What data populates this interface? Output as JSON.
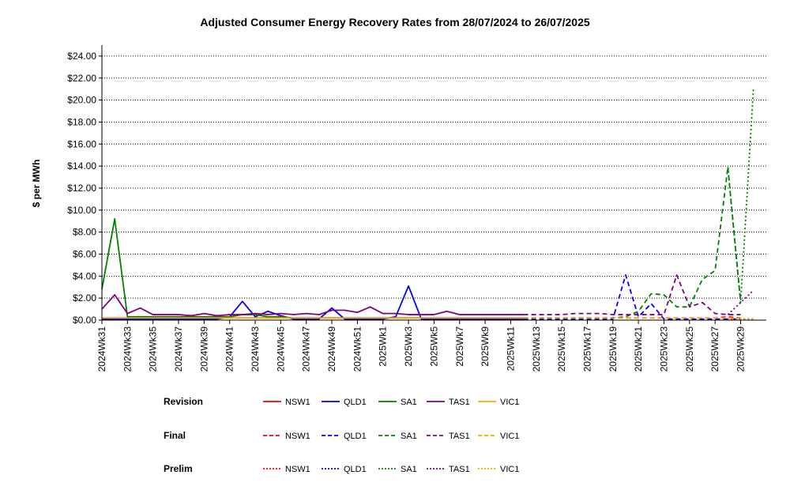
{
  "chart_data": {
    "type": "line",
    "title": "Adjusted Consumer Energy Recovery Rates from 28/07/2024 to 26/07/2025",
    "ylabel": "$ per MWh",
    "xlabel": "",
    "ylim": [
      0,
      25
    ],
    "y_ticks": [
      "$0.00",
      "$2.00",
      "$4.00",
      "$6.00",
      "$8.00",
      "$10.00",
      "$12.00",
      "$14.00",
      "$16.00",
      "$18.00",
      "$20.00",
      "$22.00",
      "$24.00"
    ],
    "y_tick_values": [
      0,
      2,
      4,
      6,
      8,
      10,
      12,
      14,
      16,
      18,
      20,
      22,
      24
    ],
    "grid": "horizontal dotted",
    "weeks": [
      "2024Wk31",
      "2024Wk32",
      "2024Wk33",
      "2024Wk34",
      "2024Wk35",
      "2024Wk36",
      "2024Wk37",
      "2024Wk38",
      "2024Wk39",
      "2024Wk40",
      "2024Wk41",
      "2024Wk42",
      "2024Wk43",
      "2024Wk44",
      "2024Wk45",
      "2024Wk46",
      "2024Wk47",
      "2024Wk48",
      "2024Wk49",
      "2024Wk50",
      "2024Wk51",
      "2024Wk52",
      "2025Wk1",
      "2025Wk2",
      "2025Wk3",
      "2025Wk4",
      "2025Wk5",
      "2025Wk6",
      "2025Wk7",
      "2025Wk8",
      "2025Wk9",
      "2025Wk10",
      "2025Wk11",
      "2025Wk12",
      "2025Wk13",
      "2025Wk14",
      "2025Wk15",
      "2025Wk16",
      "2025Wk17",
      "2025Wk18",
      "2025Wk19",
      "2025Wk20",
      "2025Wk21",
      "2025Wk22",
      "2025Wk23",
      "2025Wk24",
      "2025Wk25",
      "2025Wk26",
      "2025Wk27",
      "2025Wk28",
      "2025Wk29",
      "2025Wk30"
    ],
    "x_tick_labels": [
      "2024Wk31",
      "2024Wk33",
      "2024Wk35",
      "2024Wk37",
      "2024Wk39",
      "2024Wk41",
      "2024Wk43",
      "2024Wk45",
      "2024Wk47",
      "2024Wk49",
      "2024Wk51",
      "2025Wk1",
      "2025Wk3",
      "2025Wk5",
      "2025Wk7",
      "2025Wk9",
      "2025Wk11",
      "2025Wk13",
      "2025Wk15",
      "2025Wk17",
      "2025Wk19",
      "2025Wk21",
      "2025Wk23",
      "2025Wk25",
      "2025Wk27",
      "2025Wk29"
    ],
    "legend_groups": [
      {
        "label": "Revision",
        "style": "solid"
      },
      {
        "label": "Final",
        "style": "dashed"
      },
      {
        "label": "Prelim",
        "style": "dotted"
      }
    ],
    "regions": [
      {
        "name": "NSW1",
        "color": "#ff0000"
      },
      {
        "name": "QLD1",
        "color": "#0000ff"
      },
      {
        "name": "SA1",
        "color": "#008000"
      },
      {
        "name": "TAS1",
        "color": "#800080"
      },
      {
        "name": "VIC1",
        "color": "#ffa500"
      }
    ],
    "series": [
      {
        "name": "NSW1",
        "stage": "Revision",
        "start": 0,
        "values": [
          0.2,
          0.2,
          0.2,
          0.2,
          0.2,
          0.2,
          0.2,
          0.2,
          0.2,
          0.2,
          0.2,
          0.2,
          0.2,
          0.2,
          0.2,
          0.2,
          0.2,
          0.2,
          0.2,
          0.2,
          0.2,
          0.2,
          0.2,
          0.2,
          0.2,
          0.2,
          0.2,
          0.2,
          0.2,
          0.2,
          0.2,
          0.2,
          0.2,
          0.2
        ]
      },
      {
        "name": "QLD1",
        "stage": "Revision",
        "start": 0,
        "values": [
          0.1,
          0.1,
          0.1,
          0.1,
          0.1,
          0.1,
          0.1,
          0.1,
          0.1,
          0.1,
          0.3,
          1.7,
          0.3,
          0.8,
          0.4,
          0.1,
          0.1,
          0.1,
          1.1,
          0.1,
          0.1,
          0.1,
          0.1,
          0.3,
          3.1,
          0.1,
          0.1,
          0.1,
          0.1,
          0.1,
          0.1,
          0.1,
          0.1,
          0.1
        ]
      },
      {
        "name": "SA1",
        "stage": "Revision",
        "start": 0,
        "values": [
          2.8,
          9.2,
          0.3,
          0.3,
          0.3,
          0.3,
          0.3,
          0.3,
          0.3,
          0.3,
          0.3,
          0.5,
          0.5,
          0.3,
          0.3,
          0.2,
          0.2,
          0.2,
          0.2,
          0.2,
          0.2,
          0.2,
          0.2,
          0.2,
          0.2,
          0.2,
          0.2,
          0.2,
          0.2,
          0.2,
          0.2,
          0.2,
          0.2,
          0.2
        ]
      },
      {
        "name": "TAS1",
        "stage": "Revision",
        "start": 0,
        "values": [
          1.0,
          2.3,
          0.6,
          1.1,
          0.5,
          0.5,
          0.5,
          0.4,
          0.6,
          0.4,
          0.5,
          0.5,
          0.6,
          0.5,
          0.6,
          0.5,
          0.6,
          0.5,
          0.9,
          0.9,
          0.7,
          1.2,
          0.6,
          0.6,
          0.5,
          0.5,
          0.5,
          0.8,
          0.5,
          0.5,
          0.5,
          0.5,
          0.5,
          0.5
        ]
      },
      {
        "name": "VIC1",
        "stage": "Revision",
        "start": 0,
        "values": [
          0.2,
          0.2,
          0.2,
          0.2,
          0.2,
          0.2,
          0.2,
          0.2,
          0.2,
          0.2,
          0.2,
          0.2,
          0.2,
          0.2,
          0.2,
          0.2,
          0.2,
          0.2,
          0.2,
          0.2,
          0.2,
          0.2,
          0.2,
          0.2,
          0.2,
          0.2,
          0.2,
          0.2,
          0.2,
          0.2,
          0.2,
          0.2,
          0.2,
          0.2
        ]
      },
      {
        "name": "NSW1",
        "stage": "Final",
        "start": 33,
        "values": [
          0.2,
          0.2,
          0.2,
          0.2,
          0.2,
          0.2,
          0.2,
          0.2,
          0.2,
          0.2,
          0.2,
          0.2,
          0.2,
          0.2,
          0.2,
          0.2,
          0.3,
          0.2
        ]
      },
      {
        "name": "QLD1",
        "stage": "Final",
        "start": 33,
        "values": [
          0.1,
          0.1,
          0.1,
          0.1,
          0.1,
          0.1,
          0.1,
          0.1,
          4.1,
          0.3,
          1.5,
          0.1,
          0.1,
          0.1,
          0.1,
          0.1,
          0.1,
          0.1
        ]
      },
      {
        "name": "SA1",
        "stage": "Final",
        "start": 33,
        "values": [
          0.2,
          0.2,
          0.2,
          0.2,
          0.2,
          0.2,
          0.2,
          0.2,
          0.3,
          0.8,
          2.4,
          2.3,
          1.2,
          1.2,
          3.7,
          4.5,
          13.9,
          1.6
        ]
      },
      {
        "name": "TAS1",
        "stage": "Final",
        "start": 33,
        "values": [
          0.5,
          0.5,
          0.5,
          0.5,
          0.6,
          0.6,
          0.6,
          0.5,
          0.5,
          0.5,
          0.5,
          0.5,
          4.1,
          1.2,
          1.6,
          0.6,
          0.5,
          0.5
        ]
      },
      {
        "name": "VIC1",
        "stage": "Final",
        "start": 33,
        "values": [
          0.2,
          0.2,
          0.2,
          0.2,
          0.2,
          0.2,
          0.2,
          0.2,
          0.2,
          0.2,
          0.2,
          0.2,
          0.2,
          0.2,
          0.2,
          0.2,
          0.2,
          0.2
        ]
      },
      {
        "name": "NSW1",
        "stage": "Prelim",
        "start": 49,
        "values": [
          0.1,
          0.1,
          0.1
        ]
      },
      {
        "name": "QLD1",
        "stage": "Prelim",
        "start": 49,
        "values": [
          0.1,
          0.1,
          0.1
        ]
      },
      {
        "name": "SA1",
        "stage": "Prelim",
        "start": 49,
        "values": [
          13.9,
          1.6,
          21.0
        ]
      },
      {
        "name": "TAS1",
        "stage": "Prelim",
        "start": 49,
        "values": [
          0.5,
          1.6,
          2.7
        ]
      },
      {
        "name": "VIC1",
        "stage": "Prelim",
        "start": 49,
        "values": [
          0.1,
          0.1,
          0.1
        ]
      }
    ]
  }
}
